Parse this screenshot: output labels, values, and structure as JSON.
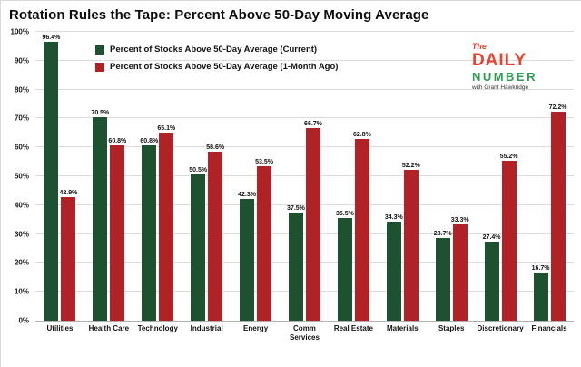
{
  "title": "Rotation Rules the Tape: Percent Above 50-Day Moving Average",
  "logo": {
    "line1": "The",
    "line2": "DAILY",
    "line3": "NUMBER",
    "tagline": "with Grant Hawkridge"
  },
  "colors": {
    "current_green": "#1d5130",
    "month_ago_red": "#b12227",
    "logo_red": "#e8432f",
    "logo_green": "#2f9e53"
  },
  "legend": [
    {
      "label": "Percent of Stocks Above 50-Day Average (Current)",
      "color": "#1d5130"
    },
    {
      "label": "Percent of Stocks Above 50-Day Average (1-Month Ago)",
      "color": "#b12227"
    }
  ],
  "chart_data": {
    "type": "bar",
    "title": "Rotation Rules the Tape: Percent Above 50-Day Moving Average",
    "categories": [
      "Utilities",
      "Health Care",
      "Technology",
      "Industrial",
      "Energy",
      "Comm Services",
      "Real Estate",
      "Materials",
      "Staples",
      "Discretionary",
      "Financials"
    ],
    "series": [
      {
        "name": "Percent of Stocks Above 50-Day Average (Current)",
        "color": "#1d5130",
        "values": [
          96.4,
          70.5,
          60.8,
          50.5,
          42.3,
          37.5,
          35.5,
          34.3,
          28.7,
          27.4,
          16.7
        ]
      },
      {
        "name": "Percent of Stocks Above 50-Day Average (1-Month Ago)",
        "color": "#b12227",
        "values": [
          42.9,
          60.8,
          65.1,
          58.6,
          53.5,
          66.7,
          62.8,
          52.2,
          33.3,
          55.2,
          72.2
        ]
      }
    ],
    "xlabel": "",
    "ylabel": "",
    "ylim": [
      0,
      100
    ],
    "ytick_step": 10,
    "value_label_format": "one_decimal_percent",
    "grid": true,
    "legend_position": "top-left-inside"
  }
}
